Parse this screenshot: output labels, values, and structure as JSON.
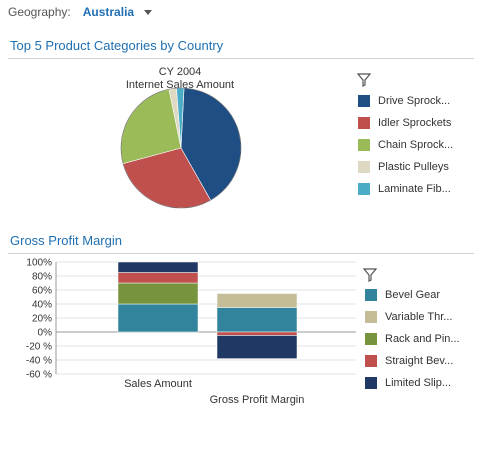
{
  "geography": {
    "label": "Geography:",
    "value": "Australia"
  },
  "pie_section": {
    "title": "Top 5 Product Categories by Country"
  },
  "bar_section": {
    "title": "Gross Profit Margin"
  },
  "chart_data": [
    {
      "type": "pie",
      "title": "CY 2004",
      "subtitle": "Internet Sales Amount",
      "categories": [
        "Drive Sprock...",
        "Idler Sprockets",
        "Chain Sprock...",
        "Plastic Pulleys",
        "Laminate Fib..."
      ],
      "values": [
        41,
        29,
        26,
        2,
        2
      ],
      "colors": [
        "#1f4e85",
        "#c0504d",
        "#9bbb59",
        "#ddd9c3",
        "#4bacc6"
      ],
      "legend_position": "right"
    },
    {
      "type": "bar",
      "stacked": true,
      "categories": [
        "Sales Amount",
        "Gross Profit Margin"
      ],
      "series": [
        {
          "name": "Bevel Gear",
          "color": "#31849b",
          "values": [
            40,
            35
          ]
        },
        {
          "name": "Variable Thr...",
          "color": "#c4bd97",
          "values": [
            0,
            20
          ]
        },
        {
          "name": "Rack and Pin...",
          "color": "#77933c",
          "values": [
            30,
            0
          ]
        },
        {
          "name": "Straight Bev...",
          "color": "#c0504d",
          "values": [
            15,
            -5
          ]
        },
        {
          "name": "Limited Slip...",
          "color": "#1f3864",
          "values": [
            15,
            -33
          ]
        }
      ],
      "yticks": [
        "100%",
        "80%",
        "60%",
        "40%",
        "20%",
        "0%",
        "-20 %",
        "-40 %",
        "-60 %"
      ],
      "ylim": [
        -60,
        100
      ],
      "grid": true,
      "legend_position": "right"
    }
  ]
}
